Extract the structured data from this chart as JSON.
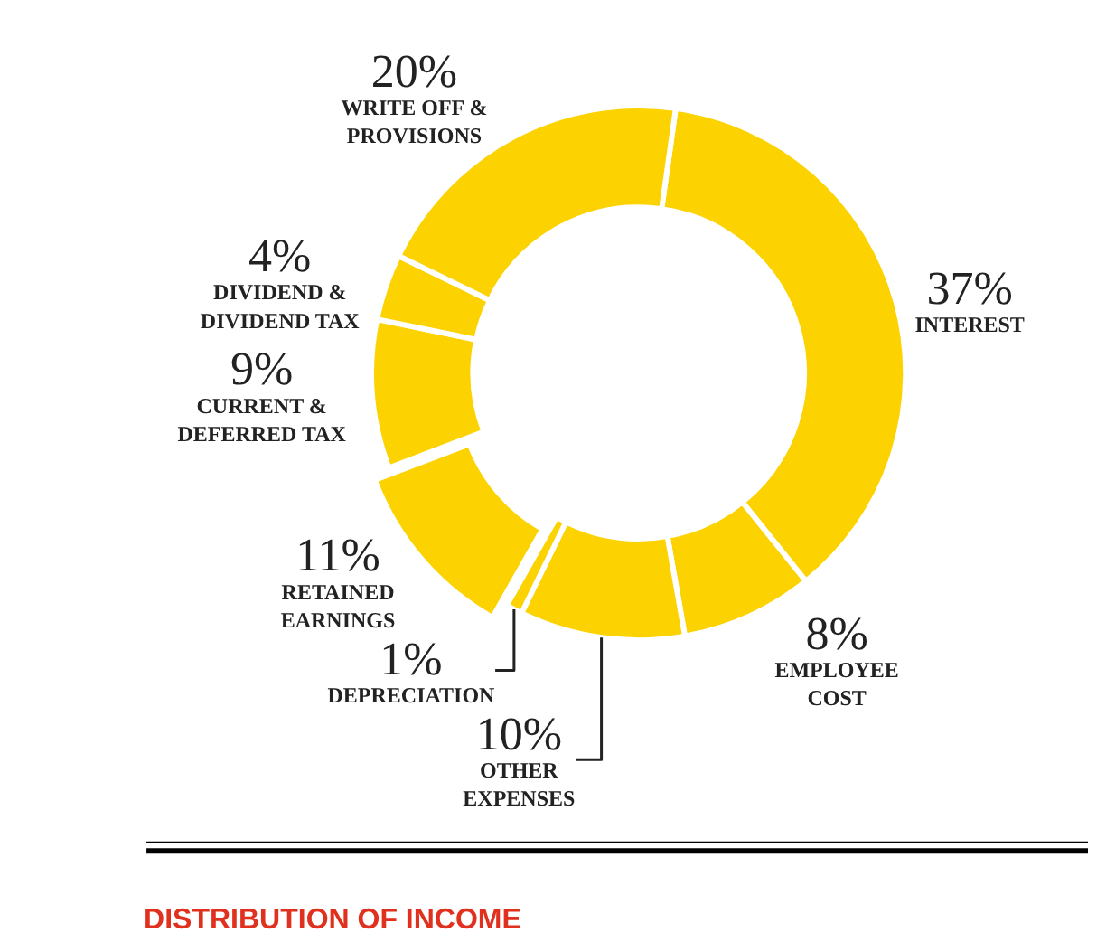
{
  "chart_data": {
    "type": "donut",
    "title": "DISTRIBUTION OF INCOME",
    "categories": [
      "INTEREST",
      "EMPLOYEE\nCOST",
      "OTHER\nEXPENSES",
      "DEPRECIATION",
      "RETAINED\nEARNINGS",
      "CURRENT &\nDEFERRED TAX",
      "DIVIDEND &\nDIVIDEND TAX",
      "WRITE OFF &\nPROVISIONS"
    ],
    "values": [
      37,
      8,
      10,
      1,
      11,
      9,
      4,
      20
    ],
    "value_labels": [
      "37%",
      "8%",
      "10%",
      "1%",
      "11%",
      "9%",
      "4%",
      "20%"
    ],
    "colors": [
      "#fcd200",
      "#fcd200",
      "#fcd200",
      "#fcd200",
      "#fcd200",
      "#fcd200",
      "#fcd200",
      "#fcd200"
    ],
    "legend": false
  }
}
